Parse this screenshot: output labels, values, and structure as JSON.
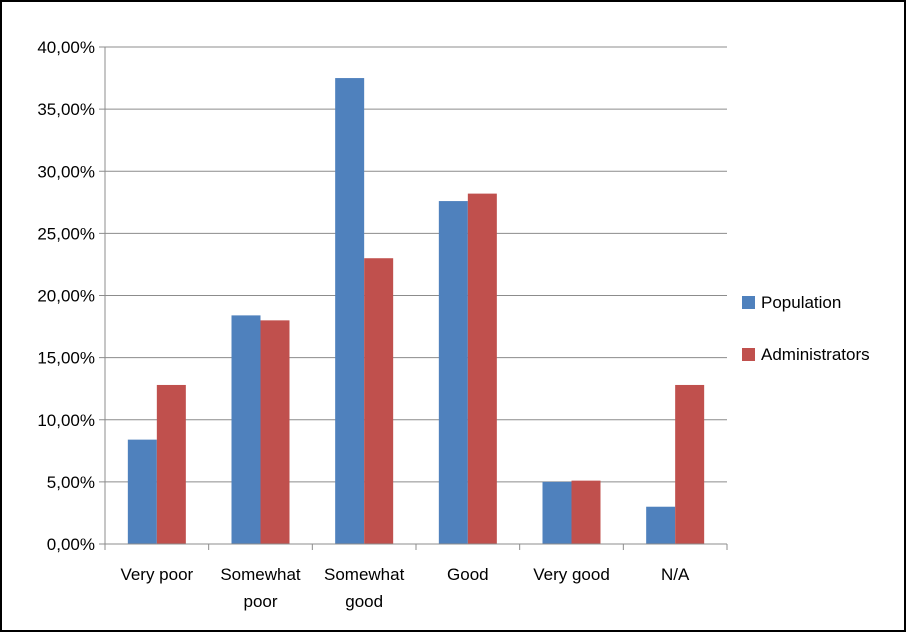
{
  "chart_data": {
    "type": "bar",
    "categories": [
      [
        "Very poor"
      ],
      [
        "Somewhat",
        "poor"
      ],
      [
        "Somewhat",
        "good"
      ],
      [
        "Good"
      ],
      [
        "Very good"
      ],
      [
        "N/A"
      ]
    ],
    "series": [
      {
        "name": "Population",
        "color": "#4F81BD",
        "values": [
          8.4,
          18.4,
          37.5,
          27.6,
          5.0,
          3.0
        ]
      },
      {
        "name": "Administrators",
        "color": "#C0504D",
        "values": [
          12.8,
          18.0,
          23.0,
          28.2,
          5.1,
          12.8
        ]
      }
    ],
    "ylim": [
      0,
      40
    ],
    "yticks": [
      "0,00%",
      "5,00%",
      "10,00%",
      "15,00%",
      "20,00%",
      "25,00%",
      "30,00%",
      "35,00%",
      "40,00%"
    ],
    "ytick_values": [
      0,
      5,
      10,
      15,
      20,
      25,
      30,
      35,
      40
    ],
    "grid": true,
    "legend_position": "right",
    "title": "",
    "xlabel": "",
    "ylabel": ""
  }
}
